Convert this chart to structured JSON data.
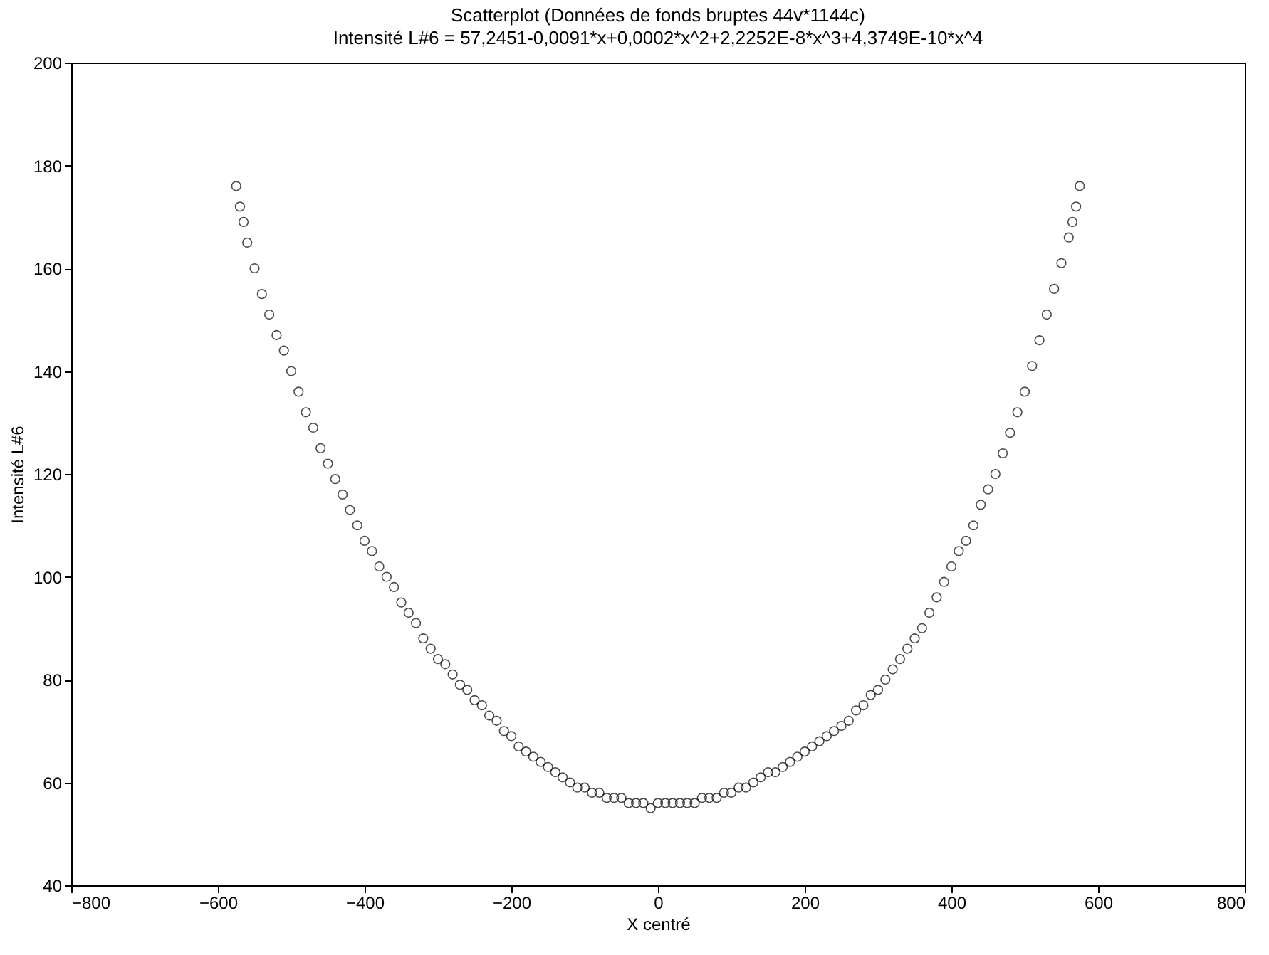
{
  "chart_data": {
    "type": "scatter",
    "title": "Scatterplot (Données de fonds bruptes 44v*1144c)",
    "subtitle": "Intensité L#6 = 57,2451-0,0091*x+0,0002*x^2+2,2252E-8*x^3+4,3749E-10*x^4",
    "xlabel": "X centré",
    "ylabel": "Intensité L#6",
    "x": [
      -575,
      -570,
      -565,
      -560,
      -550,
      -540,
      -530,
      -520,
      -510,
      -500,
      -490,
      -480,
      -470,
      -460,
      -450,
      -440,
      -430,
      -420,
      -410,
      -400,
      -390,
      -380,
      -370,
      -360,
      -350,
      -340,
      -330,
      -320,
      -310,
      -300,
      -290,
      -280,
      -270,
      -260,
      -250,
      -240,
      -230,
      -220,
      -210,
      -200,
      -190,
      -180,
      -170,
      -160,
      -150,
      -140,
      -130,
      -120,
      -110,
      -100,
      -90,
      -80,
      -70,
      -60,
      -50,
      -40,
      -30,
      -20,
      -10,
      0,
      10,
      20,
      30,
      40,
      50,
      60,
      70,
      80,
      90,
      100,
      110,
      120,
      130,
      140,
      150,
      160,
      170,
      180,
      190,
      200,
      210,
      220,
      230,
      240,
      250,
      260,
      270,
      280,
      290,
      300,
      310,
      320,
      330,
      340,
      350,
      360,
      370,
      380,
      390,
      400,
      410,
      420,
      430,
      440,
      450,
      460,
      470,
      480,
      490,
      500,
      510,
      520,
      530,
      540,
      550,
      560,
      565,
      570,
      575
    ],
    "series": [
      {
        "color": "#000000",
        "values": [
          176,
          172,
          169,
          165,
          160,
          155,
          151,
          147,
          144,
          140,
          136,
          132,
          129,
          125,
          122,
          119,
          116,
          113,
          110,
          107,
          105,
          102,
          100,
          98,
          95,
          93,
          91,
          88,
          86,
          84,
          83,
          81,
          79,
          78,
          76,
          75,
          73,
          72,
          70,
          69,
          67,
          66,
          65,
          64,
          63,
          62,
          61,
          60,
          59,
          59,
          58,
          58,
          57,
          57,
          57,
          56,
          56,
          56,
          55,
          56,
          56,
          56,
          56,
          56,
          56,
          57,
          57,
          57,
          58,
          58,
          59,
          59,
          60,
          61,
          62,
          62,
          63,
          64,
          65,
          66,
          67,
          68,
          69,
          70,
          71,
          72,
          74,
          75,
          77,
          78,
          80,
          82,
          84,
          86,
          88,
          90,
          93,
          96,
          99,
          102,
          105,
          107,
          110,
          114,
          117,
          120,
          124,
          128,
          132,
          136,
          141,
          146,
          151,
          156,
          161,
          166,
          169,
          172,
          176
        ]
      }
    ],
    "xlim": [
      -800,
      800
    ],
    "xticks": [
      -800,
      -600,
      -400,
      -200,
      0,
      200,
      400,
      600,
      800
    ],
    "ylim": [
      40,
      200
    ],
    "yticks": [
      40,
      60,
      80,
      100,
      120,
      140,
      160,
      180,
      200
    ],
    "grid": false,
    "marker": "circle"
  }
}
